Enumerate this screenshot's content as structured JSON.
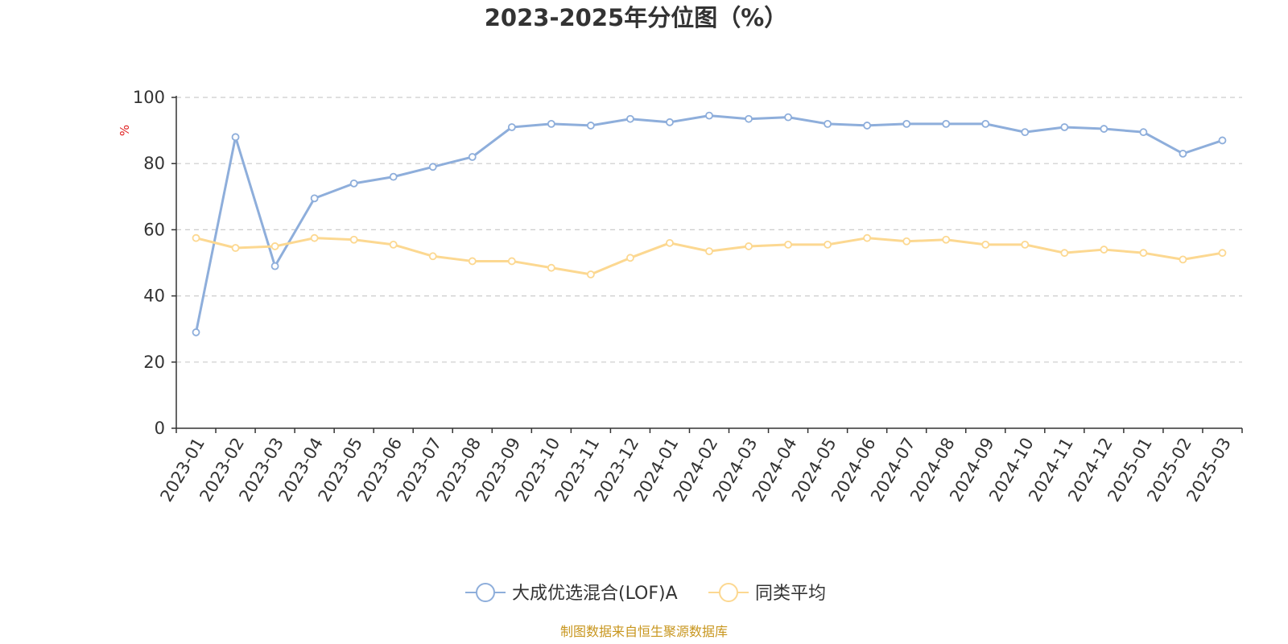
{
  "chart_data": {
    "type": "line",
    "title": "2023-2025年分位图（%）",
    "ylabel": "%",
    "ylim": [
      0,
      100
    ],
    "yticks": [
      "0",
      "20",
      "40",
      "60",
      "80",
      "100"
    ],
    "grid": true,
    "legend_position": "bottom-center",
    "categories": [
      "2023-01",
      "2023-02",
      "2023-03",
      "2023-04",
      "2023-05",
      "2023-06",
      "2023-07",
      "2023-08",
      "2023-09",
      "2023-10",
      "2023-11",
      "2023-12",
      "2024-01",
      "2024-02",
      "2024-03",
      "2024-04",
      "2024-05",
      "2024-06",
      "2024-07",
      "2024-08",
      "2024-09",
      "2024-10",
      "2024-11",
      "2024-12",
      "2025-01",
      "2025-02",
      "2025-03"
    ],
    "series": [
      {
        "name": "大成优选混合(LOF)A",
        "color": "#8eaedb",
        "values": [
          29,
          88,
          49,
          69.5,
          74,
          76,
          79,
          82,
          91,
          92,
          91.5,
          93.5,
          92.5,
          94.5,
          93.5,
          94,
          92,
          91.5,
          92,
          92,
          92,
          89.5,
          91,
          90.5,
          89.5,
          83,
          87
        ]
      },
      {
        "name": "同类平均",
        "color": "#fcd891",
        "values": [
          57.5,
          54.5,
          55,
          57.5,
          57,
          55.5,
          52,
          50.5,
          50.5,
          48.5,
          46.5,
          51.5,
          56,
          53.5,
          55,
          55.5,
          55.5,
          57.5,
          56.5,
          57,
          55.5,
          55.5,
          53,
          54,
          53,
          51,
          53
        ]
      }
    ]
  },
  "source": "制图数据来自恒生聚源数据库"
}
